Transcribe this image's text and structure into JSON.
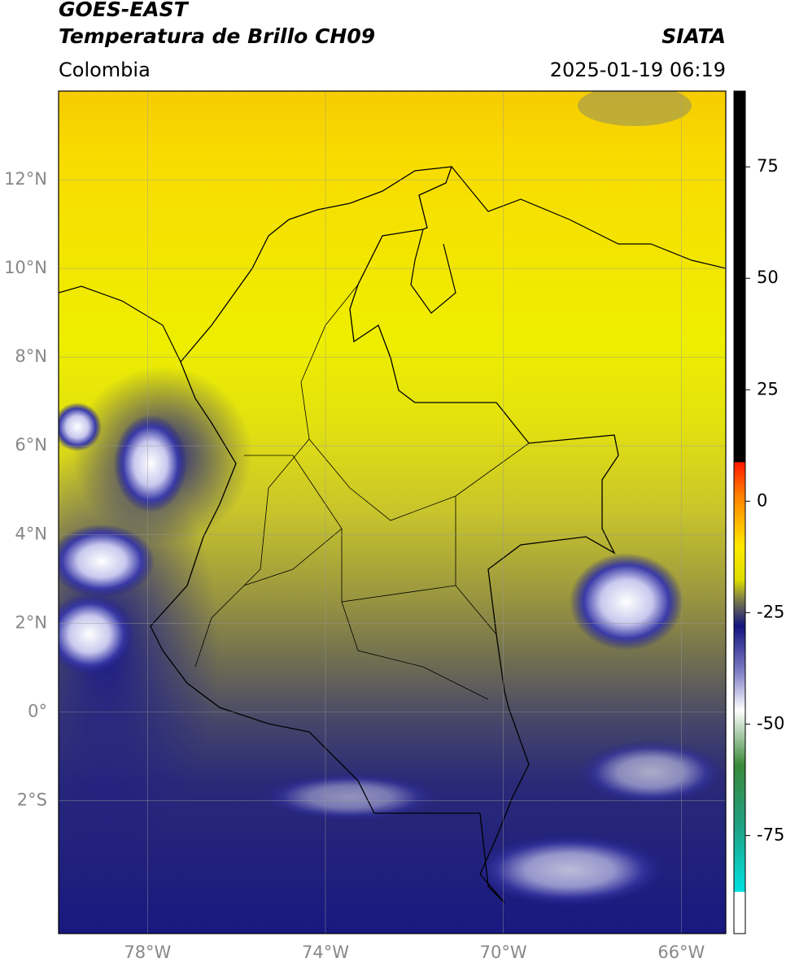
{
  "chart_data": {
    "type": "map",
    "title": "GOES-EAST",
    "subtitle": "Temperatura de Brillo CH09",
    "source": "SIATA",
    "region": "Colombia",
    "date": "2025-01-19 06:19",
    "xlim": [
      -80,
      -65
    ],
    "ylim": [
      -5,
      14
    ],
    "xticks": [
      {
        "value": -78,
        "label": "78°W"
      },
      {
        "value": -74,
        "label": "74°W"
      },
      {
        "value": -70,
        "label": "70°W"
      },
      {
        "value": -66,
        "label": "66°W"
      }
    ],
    "yticks": [
      {
        "value": 12,
        "label": "12°N"
      },
      {
        "value": 10,
        "label": "10°N"
      },
      {
        "value": 8,
        "label": "8°N"
      },
      {
        "value": 6,
        "label": "6°N"
      },
      {
        "value": 4,
        "label": "4°N"
      },
      {
        "value": 2,
        "label": "2°N"
      },
      {
        "value": 0,
        "label": "0°"
      },
      {
        "value": -2,
        "label": "2°S"
      }
    ],
    "grid": true,
    "colorbar": {
      "lim": [
        -97,
        92
      ],
      "ticks": [
        75,
        50,
        25,
        0,
        -25,
        -50,
        -75
      ]
    }
  }
}
